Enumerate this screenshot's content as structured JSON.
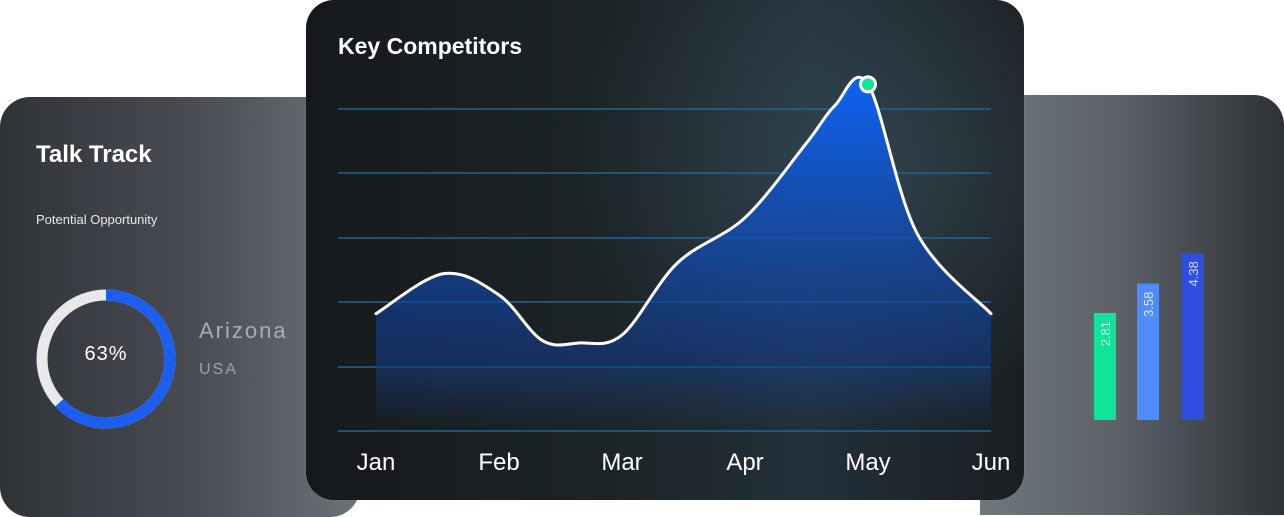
{
  "talk_track": {
    "title": "Talk Track",
    "subtitle": "Potential Opportunity",
    "progress_label": "63%",
    "progress_fraction": 0.63,
    "location_city": "Arizona",
    "location_country": "USA"
  },
  "colors": {
    "accent_blue": "#1a5ff0",
    "highlight_green": "#10e39a",
    "bar_light_blue": "#4f8cff",
    "bar_dark_blue": "#2f4ee0"
  },
  "chart_data": [
    {
      "type": "area",
      "title": "Key Competitors",
      "categories": [
        "Jan",
        "Feb",
        "Mar",
        "Apr",
        "May",
        "Jun"
      ],
      "x": [
        0,
        0.55,
        1.0,
        1.35,
        1.65,
        2.0,
        2.45,
        3.0,
        3.5,
        3.73,
        4.0,
        4.4,
        5.0
      ],
      "series": [
        {
          "values": [
            1.0,
            1.75,
            1.35,
            0.5,
            0.45,
            0.6,
            1.95,
            2.8,
            4.2,
            4.9,
            5.3,
            2.5,
            1.0
          ]
        }
      ],
      "ylim": [
        0,
        6
      ],
      "grid_lines": 6,
      "highlight": {
        "category": "May",
        "value": 5.3
      }
    },
    {
      "type": "bar",
      "values": [
        2.81,
        3.58,
        4.38
      ],
      "labels": [
        "2.81",
        "3.58",
        "4.38"
      ],
      "ylim": [
        0,
        5.25
      ]
    }
  ]
}
